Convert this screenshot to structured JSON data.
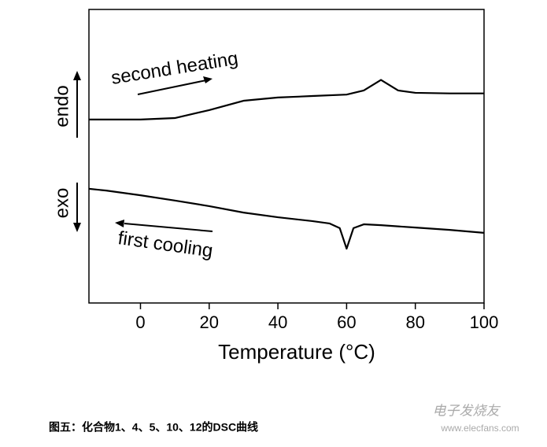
{
  "chart_data": {
    "type": "line",
    "xlabel": "Temperature (°C)",
    "xlim": [
      -15,
      100
    ],
    "xticks": [
      0,
      20,
      40,
      60,
      80,
      100
    ],
    "ylim": [
      0,
      100
    ],
    "series": [
      {
        "name": "second heating",
        "color": "#000000",
        "x": [
          -15,
          0,
          10,
          20,
          30,
          40,
          50,
          60,
          65,
          70,
          75,
          80,
          90,
          100
        ],
        "values": [
          62.5,
          62.5,
          63.0,
          65.7,
          68.9,
          70.0,
          70.5,
          71.0,
          72.4,
          76.0,
          72.4,
          71.6,
          71.4,
          71.4
        ]
      },
      {
        "name": "first cooling",
        "color": "#000000",
        "x": [
          -15,
          -10,
          0,
          10,
          20,
          30,
          40,
          50,
          55,
          58,
          60,
          62,
          65,
          70,
          80,
          90,
          100
        ],
        "values": [
          38.9,
          38.3,
          36.7,
          34.9,
          33.0,
          30.8,
          29.2,
          27.9,
          27.1,
          25.5,
          18.5,
          25.5,
          26.8,
          26.5,
          25.7,
          24.9,
          23.9
        ]
      }
    ],
    "endo_label": "endo",
    "exo_label": "exo"
  },
  "caption": "图五：化合物1、4、5、10、12的DSC曲线",
  "watermark": {
    "brand": "电子发烧友",
    "url": "www.elecfans.com"
  }
}
